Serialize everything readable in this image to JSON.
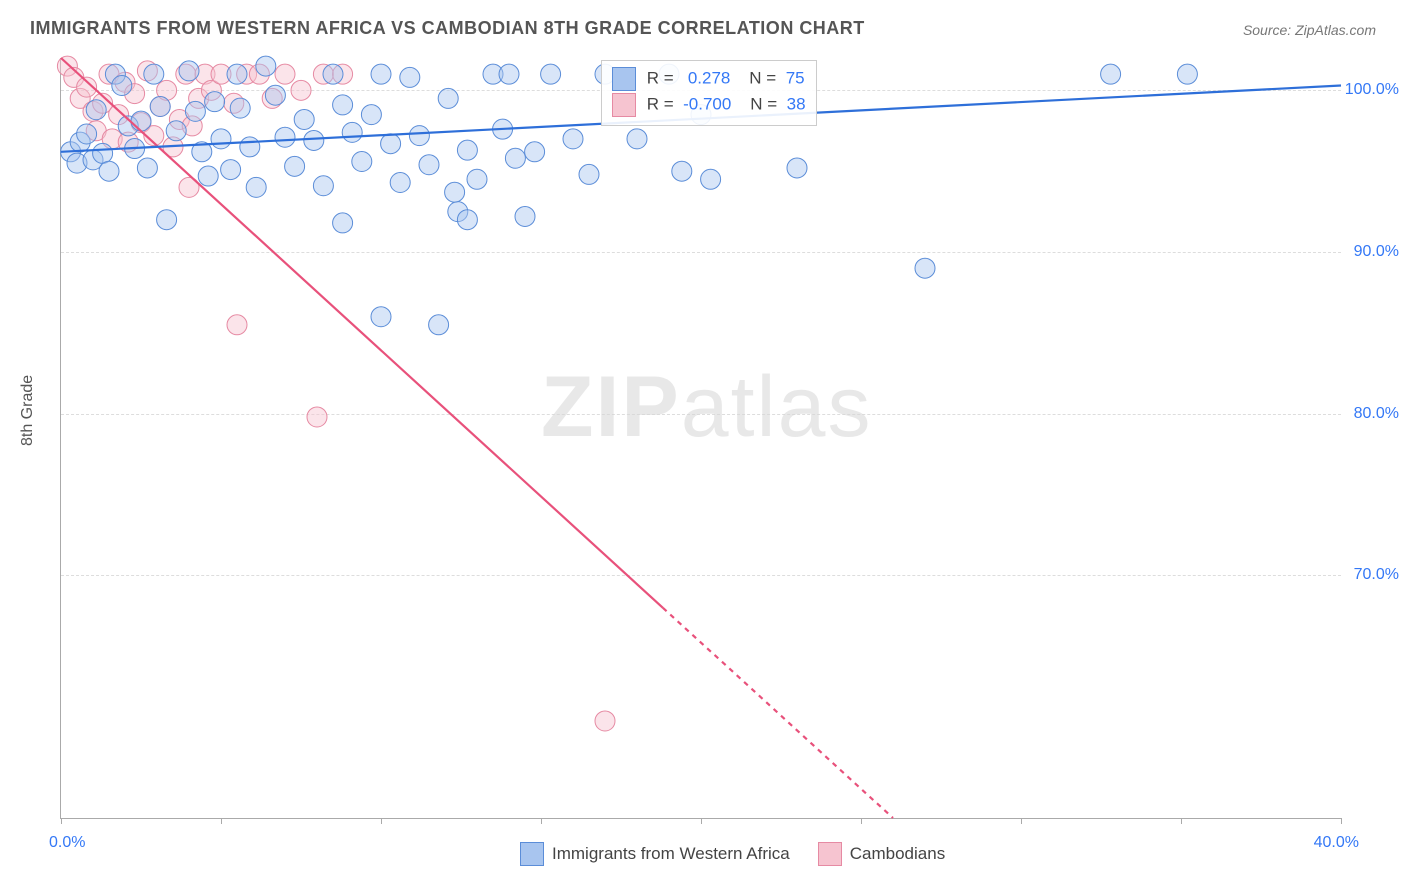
{
  "title": "IMMIGRANTS FROM WESTERN AFRICA VS CAMBODIAN 8TH GRADE CORRELATION CHART",
  "source_label": "Source: ZipAtlas.com",
  "watermark_zip": "ZIP",
  "watermark_atlas": "atlas",
  "y_axis_title": "8th Grade",
  "chart": {
    "type": "scatter",
    "xlim": [
      0,
      40
    ],
    "ylim": [
      55,
      102
    ],
    "background_color": "#ffffff",
    "grid_color": "#dddddd",
    "axis_color": "#aaaaaa",
    "y_ticks": [
      70,
      80,
      90,
      100
    ],
    "y_tick_labels": [
      "70.0%",
      "80.0%",
      "90.0%",
      "100.0%"
    ],
    "y_tick_color": "#3478f6",
    "x_tick_positions": [
      0,
      5,
      10,
      15,
      20,
      25,
      30,
      35,
      40
    ],
    "x_min_label": "0.0%",
    "x_max_label": "40.0%",
    "x_label_color": "#3478f6",
    "marker_radius": 10,
    "marker_opacity": 0.45,
    "line_width": 2.2,
    "dash_pattern": "5,5"
  },
  "series_a": {
    "label": "Immigrants from Western Africa",
    "color_fill": "#a8c5ef",
    "color_stroke": "#5b8dd8",
    "line_color": "#2e6fd9",
    "R": "0.278",
    "N": "75",
    "trend": {
      "x1": 0,
      "y1": 96.2,
      "x2": 40,
      "y2": 100.3,
      "y_cutoff": 102
    },
    "points": [
      [
        0.3,
        96.2
      ],
      [
        0.5,
        95.5
      ],
      [
        0.6,
        96.8
      ],
      [
        0.8,
        97.3
      ],
      [
        1.0,
        95.7
      ],
      [
        1.1,
        98.8
      ],
      [
        1.3,
        96.1
      ],
      [
        1.5,
        95.0
      ],
      [
        1.7,
        101.0
      ],
      [
        1.9,
        100.3
      ],
      [
        2.1,
        97.8
      ],
      [
        2.3,
        96.4
      ],
      [
        2.5,
        98.1
      ],
      [
        2.7,
        95.2
      ],
      [
        2.9,
        101.0
      ],
      [
        3.1,
        99.0
      ],
      [
        3.3,
        92.0
      ],
      [
        3.6,
        97.5
      ],
      [
        4.0,
        101.2
      ],
      [
        4.2,
        98.7
      ],
      [
        4.4,
        96.2
      ],
      [
        4.6,
        94.7
      ],
      [
        4.8,
        99.3
      ],
      [
        5.0,
        97.0
      ],
      [
        5.3,
        95.1
      ],
      [
        5.6,
        98.9
      ],
      [
        5.9,
        96.5
      ],
      [
        6.1,
        94.0
      ],
      [
        6.4,
        101.5
      ],
      [
        6.7,
        99.7
      ],
      [
        7.0,
        97.1
      ],
      [
        7.3,
        95.3
      ],
      [
        7.6,
        98.2
      ],
      [
        7.9,
        96.9
      ],
      [
        8.2,
        94.1
      ],
      [
        8.5,
        101.0
      ],
      [
        8.8,
        99.1
      ],
      [
        9.1,
        97.4
      ],
      [
        9.4,
        95.6
      ],
      [
        9.7,
        98.5
      ],
      [
        10.0,
        101.0
      ],
      [
        10.3,
        96.7
      ],
      [
        10.6,
        94.3
      ],
      [
        10.9,
        100.8
      ],
      [
        11.2,
        97.2
      ],
      [
        11.5,
        95.4
      ],
      [
        11.8,
        85.5
      ],
      [
        12.1,
        99.5
      ],
      [
        12.4,
        92.5
      ],
      [
        12.7,
        96.3
      ],
      [
        13.0,
        94.5
      ],
      [
        13.5,
        101.0
      ],
      [
        14.0,
        101.0
      ],
      [
        14.5,
        92.2
      ],
      [
        12.7,
        92.0
      ],
      [
        12.3,
        93.7
      ],
      [
        13.8,
        97.6
      ],
      [
        14.2,
        95.8
      ],
      [
        14.8,
        96.2
      ],
      [
        15.3,
        101.0
      ],
      [
        16.0,
        97.0
      ],
      [
        16.5,
        94.8
      ],
      [
        17.0,
        101.0
      ],
      [
        18.0,
        97.0
      ],
      [
        19.0,
        101.0
      ],
      [
        19.4,
        95.0
      ],
      [
        20.0,
        98.5
      ],
      [
        20.3,
        94.5
      ],
      [
        23.0,
        95.2
      ],
      [
        27.0,
        89.0
      ],
      [
        32.8,
        101.0
      ],
      [
        35.2,
        101.0
      ],
      [
        10.0,
        86.0
      ],
      [
        8.8,
        91.8
      ],
      [
        5.5,
        101.0
      ]
    ]
  },
  "series_b": {
    "label": "Cambodians",
    "color_fill": "#f6c4d0",
    "color_stroke": "#e68aa3",
    "line_color": "#e8517b",
    "R": "-0.700",
    "N": "38",
    "trend": {
      "x1": 0,
      "y1": 102,
      "x2": 26,
      "y2": 55,
      "y_cutoff": 68
    },
    "points": [
      [
        0.2,
        101.5
      ],
      [
        0.4,
        100.8
      ],
      [
        0.6,
        99.5
      ],
      [
        0.8,
        100.2
      ],
      [
        1.0,
        98.7
      ],
      [
        1.1,
        97.5
      ],
      [
        1.3,
        99.2
      ],
      [
        1.5,
        101.0
      ],
      [
        1.6,
        97.0
      ],
      [
        1.8,
        98.5
      ],
      [
        2.0,
        100.5
      ],
      [
        2.1,
        96.8
      ],
      [
        2.3,
        99.8
      ],
      [
        2.5,
        98.0
      ],
      [
        2.7,
        101.2
      ],
      [
        2.9,
        97.2
      ],
      [
        3.1,
        99.0
      ],
      [
        3.3,
        100.0
      ],
      [
        3.5,
        96.5
      ],
      [
        3.7,
        98.2
      ],
      [
        3.9,
        101.0
      ],
      [
        4.1,
        97.8
      ],
      [
        4.3,
        99.5
      ],
      [
        4.5,
        101.0
      ],
      [
        4.7,
        100.0
      ],
      [
        5.0,
        101.0
      ],
      [
        5.4,
        99.2
      ],
      [
        5.8,
        101.0
      ],
      [
        6.2,
        101.0
      ],
      [
        6.6,
        99.5
      ],
      [
        7.0,
        101.0
      ],
      [
        7.5,
        100.0
      ],
      [
        8.2,
        101.0
      ],
      [
        8.8,
        101.0
      ],
      [
        4.0,
        94.0
      ],
      [
        5.5,
        85.5
      ],
      [
        8.0,
        79.8
      ],
      [
        17.0,
        61.0
      ]
    ]
  },
  "legend_stat": {
    "R_label": "R =",
    "N_label": "N ="
  }
}
